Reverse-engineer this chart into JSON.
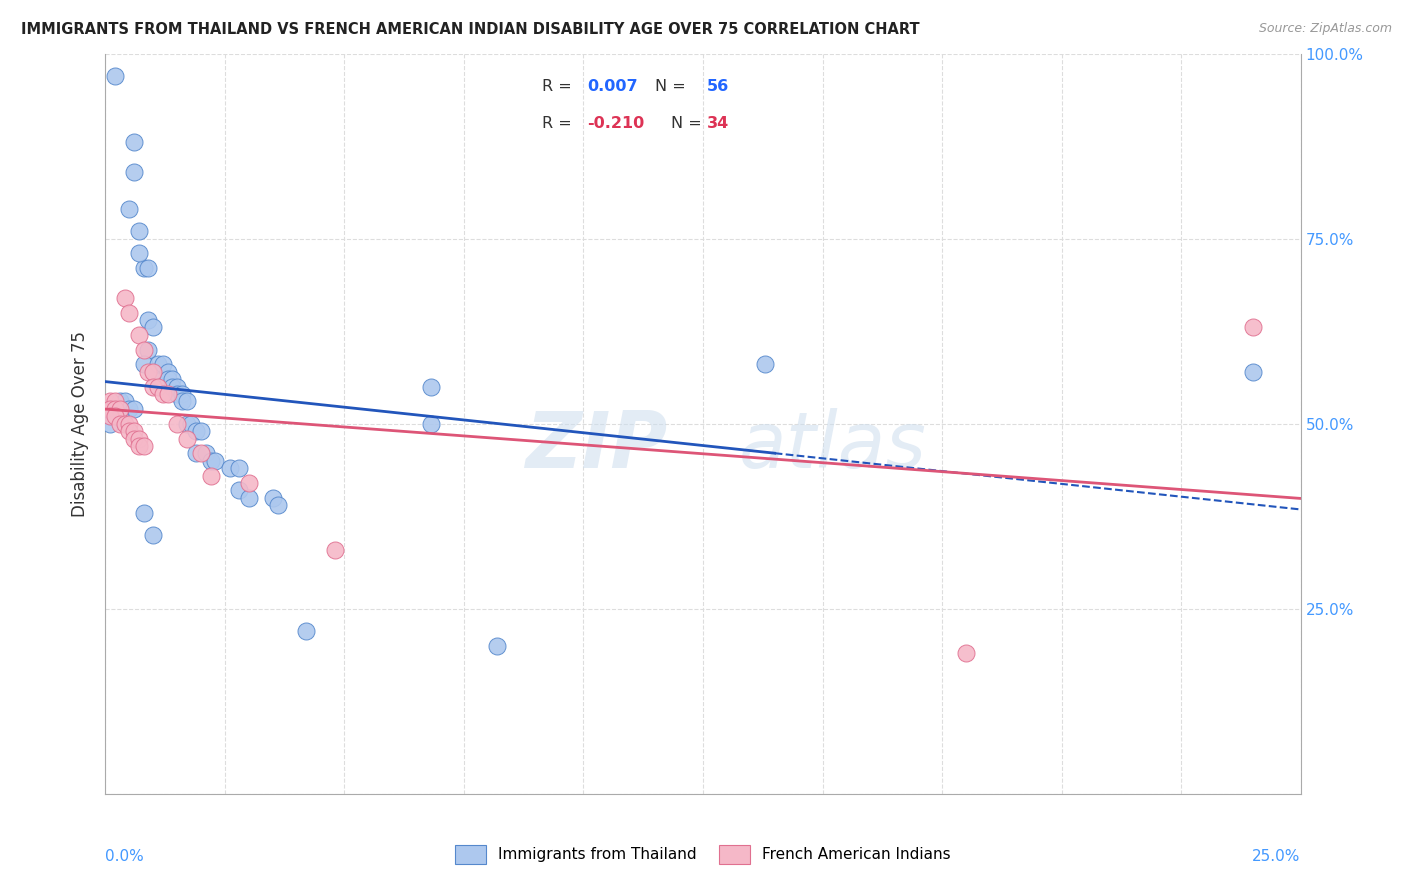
{
  "title": "IMMIGRANTS FROM THAILAND VS FRENCH AMERICAN INDIAN DISABILITY AGE OVER 75 CORRELATION CHART",
  "source": "Source: ZipAtlas.com",
  "ylabel": "Disability Age Over 75",
  "legend_blue": {
    "R": "0.007",
    "N": "56",
    "label": "Immigrants from Thailand"
  },
  "legend_pink": {
    "R": "-0.210",
    "N": "34",
    "label": "French American Indians"
  },
  "blue_color": "#adc8ee",
  "pink_color": "#f5b8c8",
  "blue_edge_color": "#5588cc",
  "pink_edge_color": "#e07090",
  "blue_line_color": "#2255bb",
  "pink_line_color": "#dd5577",
  "blue_points": [
    [
      0.002,
      0.97
    ],
    [
      0.006,
      0.88
    ],
    [
      0.006,
      0.84
    ],
    [
      0.005,
      0.79
    ],
    [
      0.008,
      0.71
    ],
    [
      0.009,
      0.71
    ],
    [
      0.007,
      0.76
    ],
    [
      0.007,
      0.73
    ],
    [
      0.009,
      0.64
    ],
    [
      0.01,
      0.63
    ],
    [
      0.009,
      0.6
    ],
    [
      0.008,
      0.58
    ],
    [
      0.01,
      0.57
    ],
    [
      0.011,
      0.58
    ],
    [
      0.012,
      0.58
    ],
    [
      0.013,
      0.57
    ],
    [
      0.013,
      0.56
    ],
    [
      0.014,
      0.56
    ],
    [
      0.014,
      0.55
    ],
    [
      0.015,
      0.55
    ],
    [
      0.015,
      0.54
    ],
    [
      0.016,
      0.54
    ],
    [
      0.016,
      0.53
    ],
    [
      0.017,
      0.53
    ],
    [
      0.003,
      0.53
    ],
    [
      0.004,
      0.53
    ],
    [
      0.005,
      0.52
    ],
    [
      0.006,
      0.52
    ],
    [
      0.001,
      0.52
    ],
    [
      0.002,
      0.52
    ],
    [
      0.001,
      0.51
    ],
    [
      0.002,
      0.51
    ],
    [
      0.003,
      0.51
    ],
    [
      0.001,
      0.5
    ],
    [
      0.017,
      0.5
    ],
    [
      0.018,
      0.5
    ],
    [
      0.019,
      0.49
    ],
    [
      0.02,
      0.49
    ],
    [
      0.019,
      0.46
    ],
    [
      0.021,
      0.46
    ],
    [
      0.022,
      0.45
    ],
    [
      0.023,
      0.45
    ],
    [
      0.026,
      0.44
    ],
    [
      0.028,
      0.44
    ],
    [
      0.028,
      0.41
    ],
    [
      0.03,
      0.4
    ],
    [
      0.035,
      0.4
    ],
    [
      0.036,
      0.39
    ],
    [
      0.008,
      0.38
    ],
    [
      0.01,
      0.35
    ],
    [
      0.042,
      0.22
    ],
    [
      0.068,
      0.55
    ],
    [
      0.068,
      0.5
    ],
    [
      0.082,
      0.2
    ],
    [
      0.138,
      0.58
    ],
    [
      0.24,
      0.57
    ]
  ],
  "pink_points": [
    [
      0.001,
      0.53
    ],
    [
      0.002,
      0.53
    ],
    [
      0.001,
      0.52
    ],
    [
      0.002,
      0.52
    ],
    [
      0.003,
      0.52
    ],
    [
      0.001,
      0.51
    ],
    [
      0.002,
      0.51
    ],
    [
      0.003,
      0.5
    ],
    [
      0.004,
      0.5
    ],
    [
      0.005,
      0.5
    ],
    [
      0.005,
      0.49
    ],
    [
      0.006,
      0.49
    ],
    [
      0.006,
      0.48
    ],
    [
      0.007,
      0.48
    ],
    [
      0.007,
      0.47
    ],
    [
      0.008,
      0.47
    ],
    [
      0.004,
      0.67
    ],
    [
      0.005,
      0.65
    ],
    [
      0.007,
      0.62
    ],
    [
      0.008,
      0.6
    ],
    [
      0.009,
      0.57
    ],
    [
      0.01,
      0.57
    ],
    [
      0.01,
      0.55
    ],
    [
      0.011,
      0.55
    ],
    [
      0.012,
      0.54
    ],
    [
      0.013,
      0.54
    ],
    [
      0.015,
      0.5
    ],
    [
      0.017,
      0.48
    ],
    [
      0.02,
      0.46
    ],
    [
      0.022,
      0.43
    ],
    [
      0.03,
      0.42
    ],
    [
      0.048,
      0.33
    ],
    [
      0.24,
      0.63
    ],
    [
      0.18,
      0.19
    ]
  ]
}
